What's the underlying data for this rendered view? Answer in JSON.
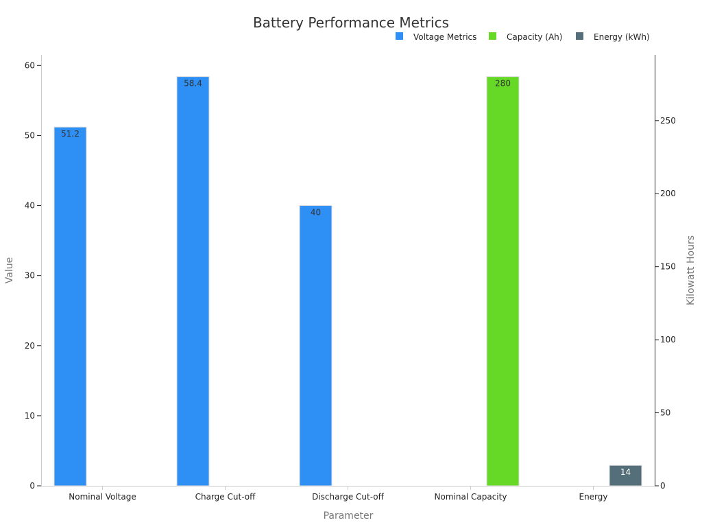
{
  "chart_data": {
    "type": "bar",
    "title": "Battery Performance Metrics",
    "xlabel": "Parameter",
    "ylabel": "Value",
    "y2label": "Kilowatt Hours",
    "categories": [
      "Nominal Voltage",
      "Charge Cut-off",
      "Discharge Cut-off",
      "Nominal Capacity",
      "Energy"
    ],
    "ylim": [
      0,
      61.5
    ],
    "yticks": [
      0,
      10,
      20,
      30,
      40,
      50,
      60
    ],
    "y2lim": [
      0,
      295
    ],
    "y2ticks": [
      0,
      50,
      100,
      150,
      200,
      250
    ],
    "legend_position": "top-right",
    "grid": false,
    "series": [
      {
        "name": "Voltage Metrics",
        "color": "#2e8ff5",
        "axis": "left",
        "slot": 0,
        "values": [
          51.2,
          58.4,
          40,
          null,
          null
        ],
        "labels": [
          "51.2",
          "58.4",
          "40",
          "",
          ""
        ],
        "label_color": "#333333"
      },
      {
        "name": "Capacity (Ah)",
        "color": "#66d926",
        "axis": "left",
        "slot": 1,
        "values": [
          null,
          null,
          null,
          58.4,
          null
        ],
        "labels": [
          "",
          "",
          "",
          "280",
          ""
        ],
        "label_color": "#333333"
      },
      {
        "name": "Energy (kWh)",
        "color": "#546e7a",
        "axis": "right",
        "slot": 1,
        "values": [
          null,
          null,
          null,
          null,
          14
        ],
        "labels": [
          "",
          "",
          "",
          "",
          "14"
        ],
        "label_color": "#ffffff"
      }
    ]
  }
}
